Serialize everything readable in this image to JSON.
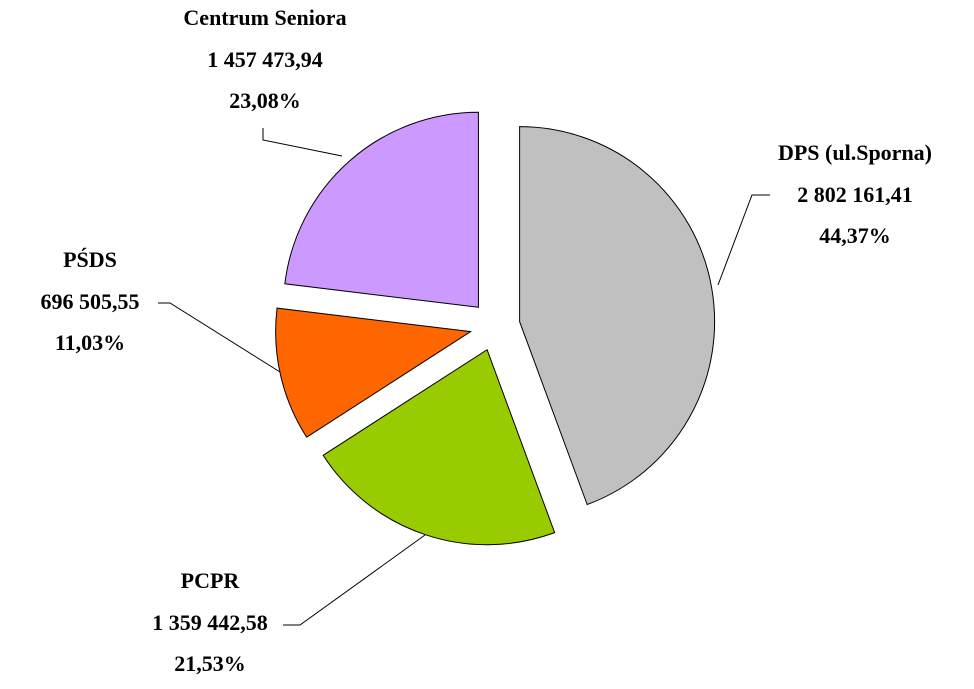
{
  "chart_data": {
    "type": "pie",
    "categories": [
      "DPS (ul.Sporna)",
      "PCPR",
      "PŚDS",
      "Centrum Seniora"
    ],
    "values": [
      2802161.41,
      1359442.58,
      696505.55,
      1457473.94
    ],
    "value_labels": [
      "2 802 161,41",
      "1 359 442,58",
      "696 505,55",
      "1 457 473,94"
    ],
    "percentages": [
      44.37,
      21.53,
      11.03,
      23.08
    ],
    "percentage_labels": [
      "44,37%",
      "21,53%",
      "11,03%",
      "23,08%"
    ],
    "colors": [
      "#c0c0c0",
      "#99cc00",
      "#ff6600",
      "#cc99ff"
    ]
  }
}
